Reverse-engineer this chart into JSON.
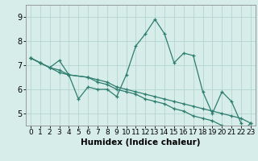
{
  "title": "",
  "xlabel": "Humidex (Indice chaleur)",
  "x_values": [
    0,
    1,
    2,
    3,
    4,
    5,
    6,
    7,
    8,
    9,
    10,
    11,
    12,
    13,
    14,
    15,
    16,
    17,
    18,
    19,
    20,
    21,
    22,
    23
  ],
  "line1": [
    7.3,
    7.1,
    6.9,
    7.2,
    6.6,
    5.6,
    6.1,
    6.0,
    6.0,
    5.7,
    6.6,
    7.8,
    8.3,
    8.9,
    8.3,
    7.1,
    7.5,
    7.4,
    5.9,
    5.0,
    5.9,
    5.5,
    4.6,
    null
  ],
  "line2": [
    7.3,
    7.1,
    6.9,
    6.7,
    6.6,
    6.5,
    6.4,
    6.3,
    6.1,
    6.0,
    5.9,
    5.8,
    5.7,
    5.6,
    5.5,
    5.4,
    5.3,
    5.2,
    5.1,
    5.0,
    4.9,
    4.8,
    4.6
  ],
  "line2_x": [
    0,
    1,
    2,
    3,
    4,
    6,
    7,
    8,
    9,
    10,
    11,
    12,
    13,
    14,
    15,
    16,
    17,
    18,
    19,
    20,
    21,
    22,
    23
  ],
  "line3": [
    7.3,
    7.1,
    6.9,
    6.8,
    6.6,
    6.5,
    6.3,
    6.2,
    6.0,
    5.9,
    5.8,
    5.6,
    5.5,
    5.4,
    5.2,
    5.1,
    4.9,
    4.8,
    4.7,
    4.5,
    4.4,
    4.2,
    4.6
  ],
  "line3_x": [
    0,
    1,
    2,
    3,
    4,
    6,
    7,
    8,
    9,
    10,
    11,
    12,
    13,
    14,
    15,
    16,
    17,
    18,
    19,
    20,
    21,
    22,
    23
  ],
  "line_color": "#2e7d6e",
  "bg_color": "#d6edea",
  "grid_color": "#b5d5d0",
  "ylim": [
    4.5,
    9.5
  ],
  "xlim": [
    -0.5,
    23.5
  ],
  "yticks": [
    5,
    6,
    7,
    8,
    9
  ],
  "xticks": [
    0,
    1,
    2,
    3,
    4,
    5,
    6,
    7,
    8,
    9,
    10,
    11,
    12,
    13,
    14,
    15,
    16,
    17,
    18,
    19,
    20,
    21,
    22,
    23
  ],
  "tick_fontsize": 6.5,
  "xlabel_fontsize": 7.5,
  "marker_size": 3.5,
  "linewidth": 0.9
}
